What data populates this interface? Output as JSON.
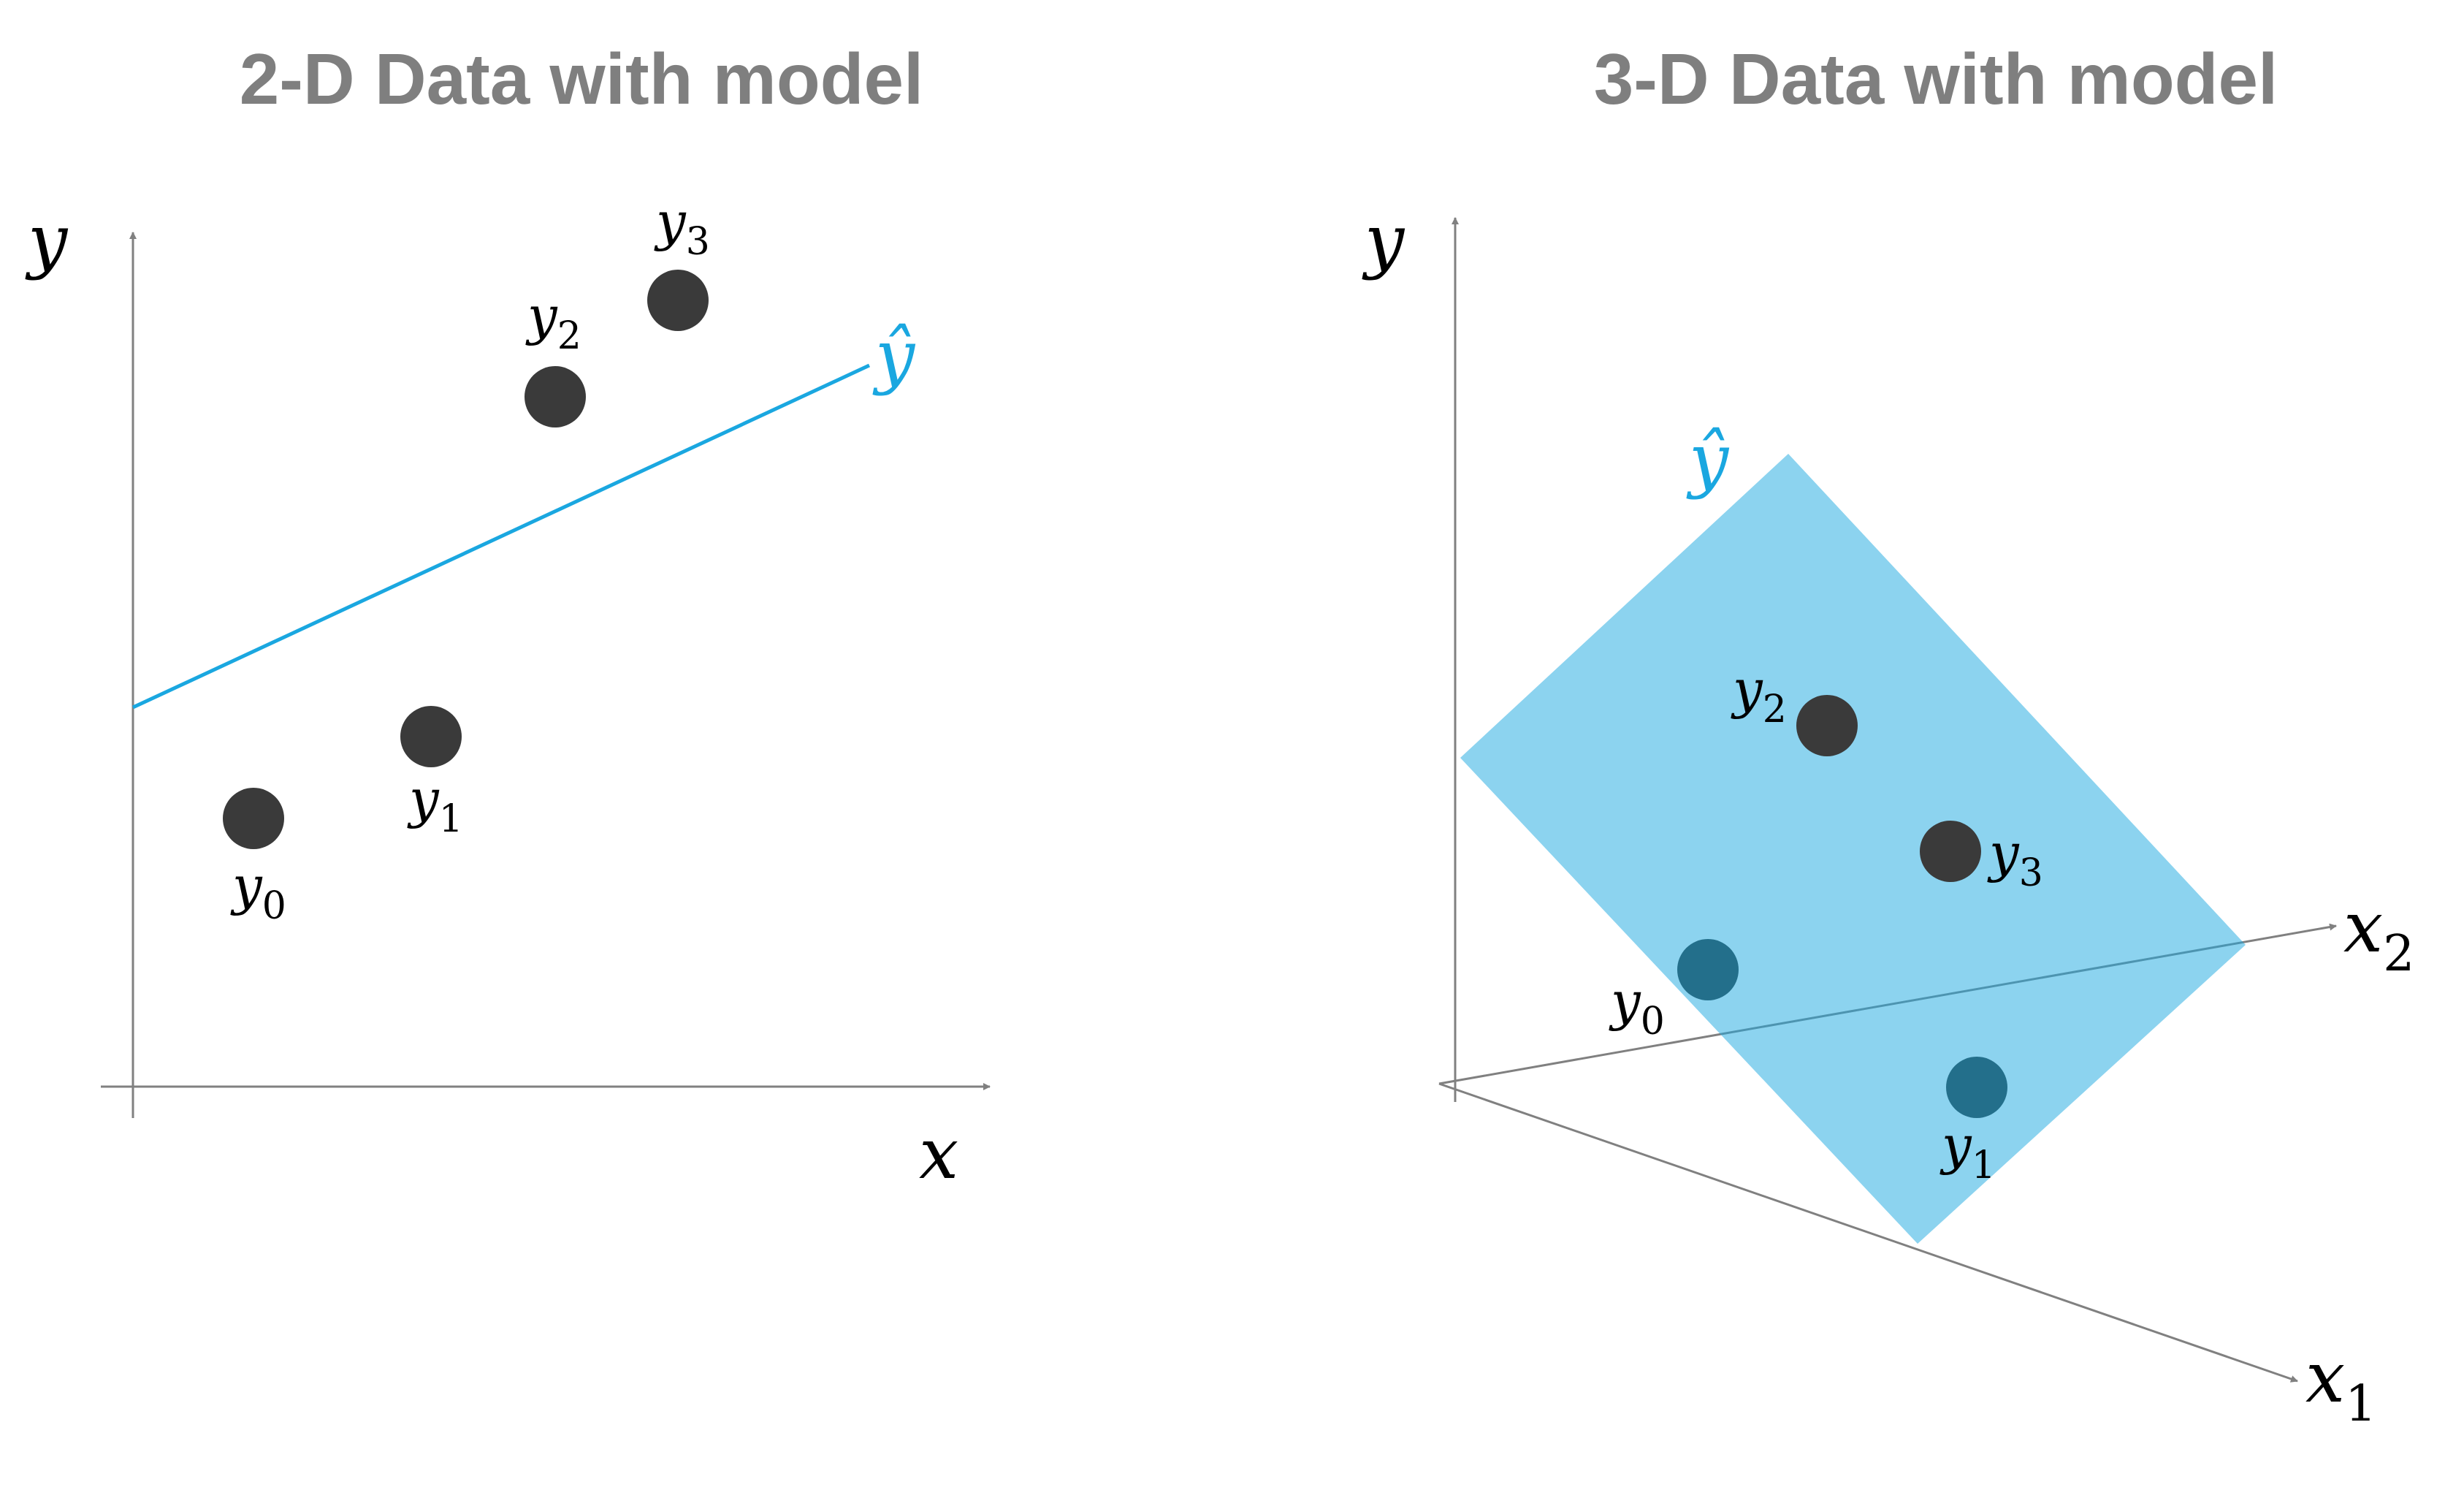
{
  "colors": {
    "axis": "#808080",
    "point": "#3a3a3a",
    "point_below_plane": "#236f8b",
    "model": "#1aa7e0",
    "plane_fill": "#8fdaf6",
    "title": "#7f7f7f"
  },
  "left_panel": {
    "title": "2-D Data with model",
    "y_axis_label": "y",
    "x_axis_label": "x",
    "model_label": "ŷ",
    "points": [
      {
        "label": "y",
        "sub": "0"
      },
      {
        "label": "y",
        "sub": "1"
      },
      {
        "label": "y",
        "sub": "2"
      },
      {
        "label": "y",
        "sub": "3"
      }
    ]
  },
  "right_panel": {
    "title": "3-D Data with model",
    "y_axis_label": "y",
    "x2_axis_label": "x",
    "x2_axis_sub": "2",
    "x1_axis_label": "x",
    "x1_axis_sub": "1",
    "model_label": "ŷ",
    "points": [
      {
        "label": "y",
        "sub": "0"
      },
      {
        "label": "y",
        "sub": "1"
      },
      {
        "label": "y",
        "sub": "2"
      },
      {
        "label": "y",
        "sub": "3"
      }
    ]
  }
}
